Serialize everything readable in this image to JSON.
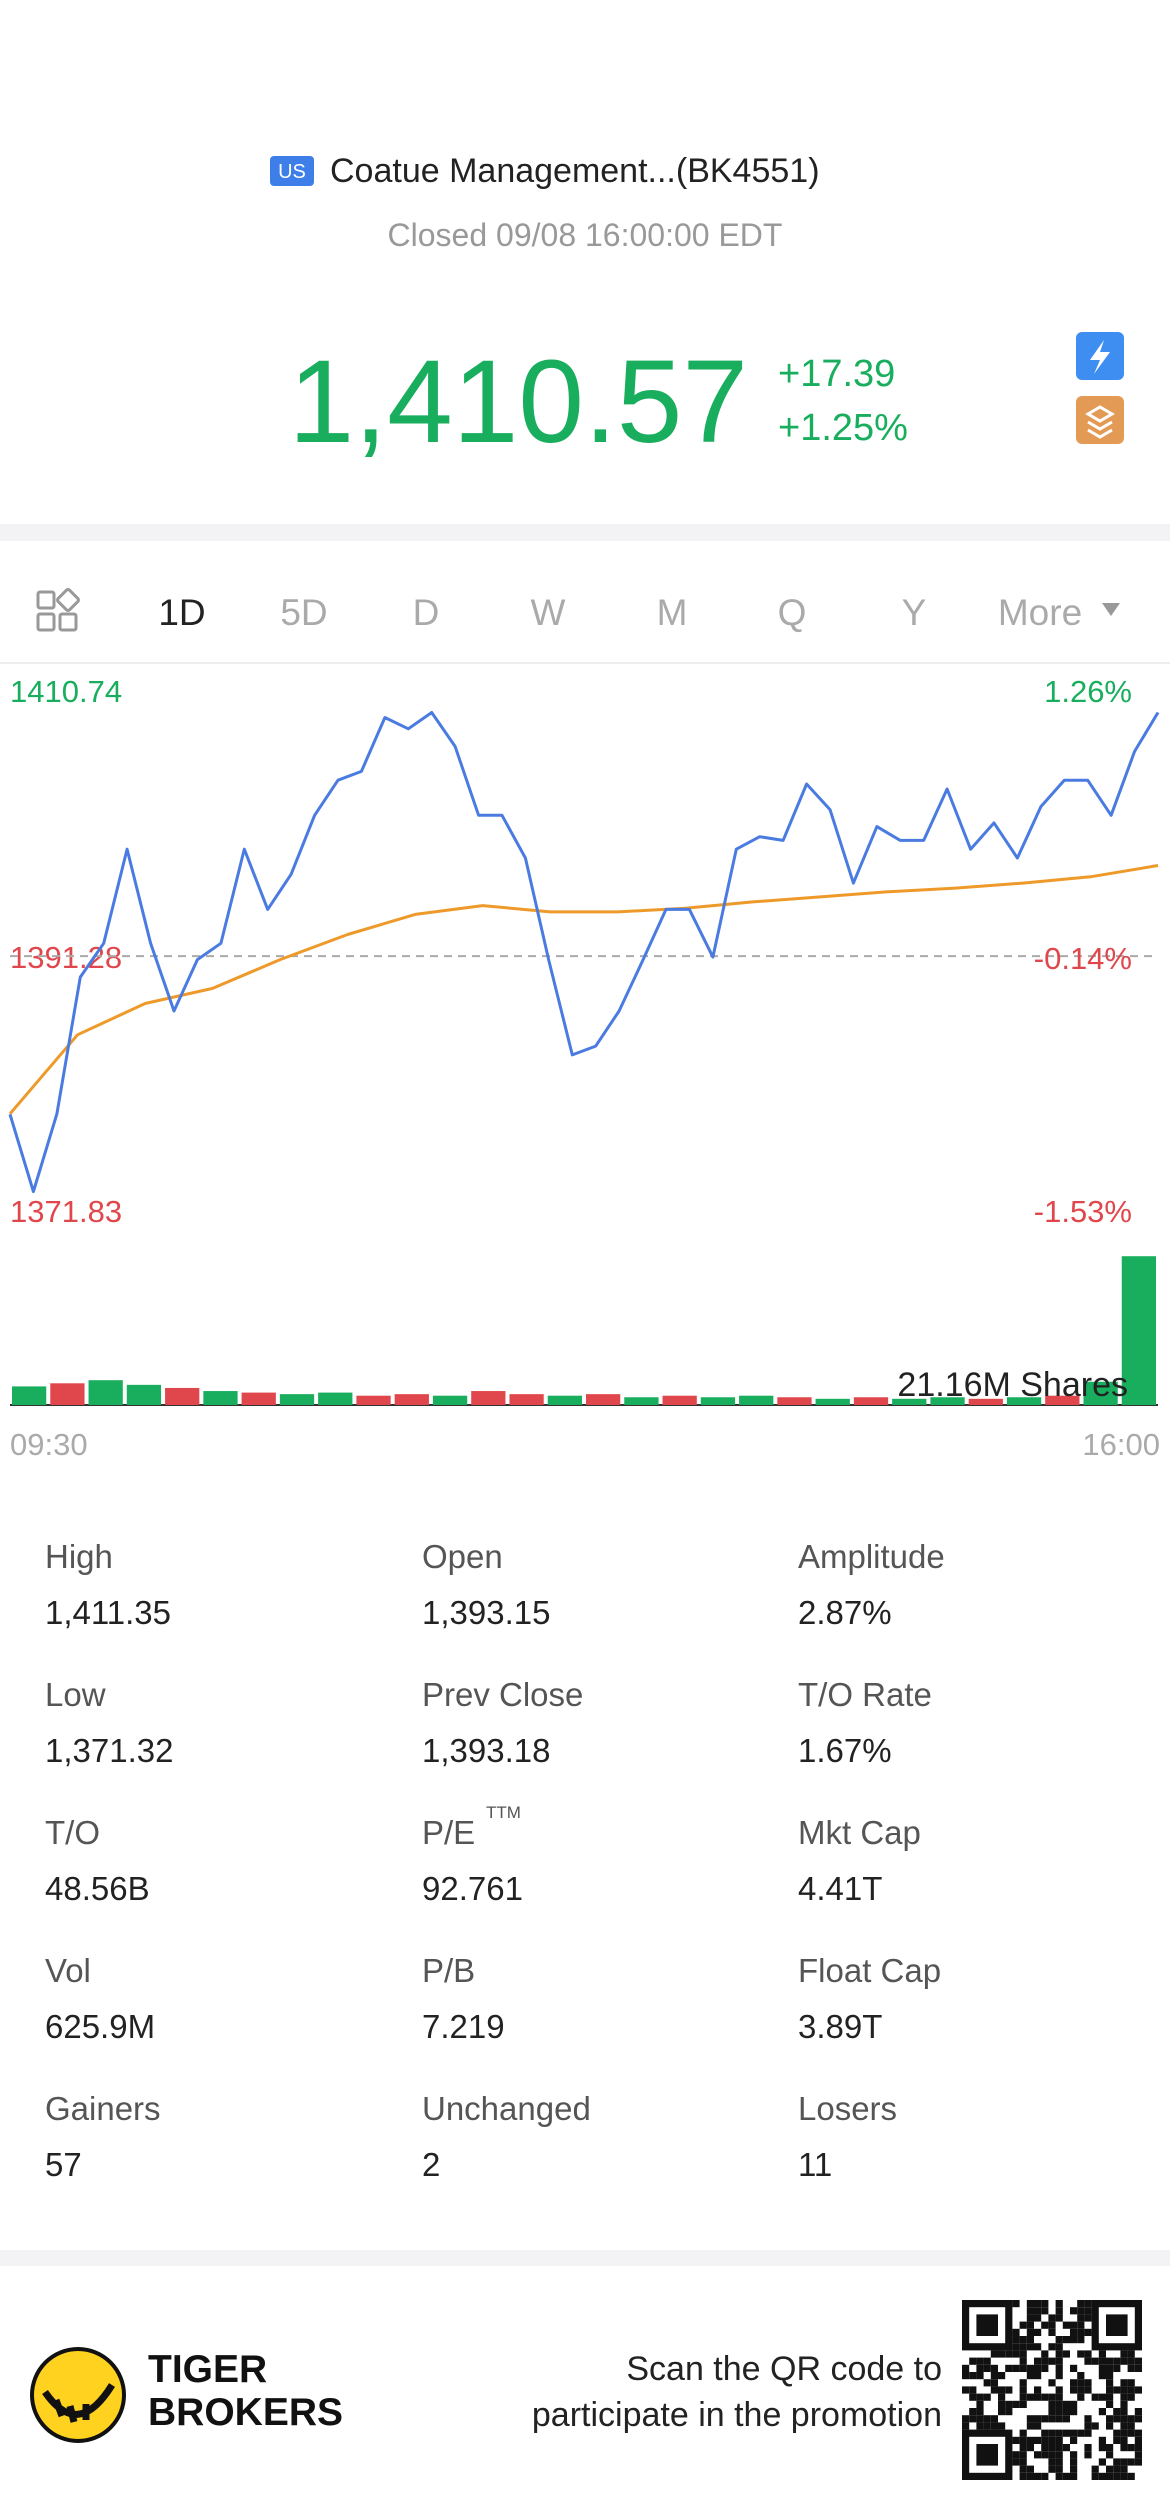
{
  "header": {
    "market": "US",
    "title": "Coatue Management...(BK4551)",
    "status": "Closed 09/08 16:00:00 EDT"
  },
  "quote": {
    "price": "1,410.57",
    "change": "+17.39",
    "change_pct": "+1.25%"
  },
  "tabs": [
    "1D",
    "5D",
    "D",
    "W",
    "M",
    "Q",
    "Y",
    "More"
  ],
  "chart_data": {
    "type": "line",
    "ylim": [
      1371.83,
      1410.74
    ],
    "yticks": [
      1410.74,
      1391.28,
      1371.83
    ],
    "y2lim": [
      -1.53,
      1.26
    ],
    "y2ticks": [
      {
        "value": 1.26,
        "label": "1.26%"
      },
      {
        "value": -0.14,
        "label": "-0.14%"
      },
      {
        "value": -1.53,
        "label": "-1.53%"
      }
    ],
    "x_labels": [
      "09:30",
      "16:00"
    ],
    "series": [
      {
        "name": "Price",
        "color": "#4a7be0",
        "values": [
          1378.66,
          1372.5,
          1378.7,
          1389.6,
          1392.3,
          1399.8,
          1392.3,
          1386.9,
          1391.0,
          1392.3,
          1399.8,
          1395.0,
          1397.8,
          1402.5,
          1405.3,
          1406.0,
          1410.3,
          1409.4,
          1410.7,
          1408.0,
          1402.5,
          1402.5,
          1399.1,
          1390.9,
          1383.4,
          1384.1,
          1386.9,
          1390.9,
          1395.0,
          1395.0,
          1391.2,
          1399.8,
          1400.8,
          1400.5,
          1405.0,
          1402.96,
          1397.1,
          1401.6,
          1400.5,
          1400.5,
          1404.6,
          1399.8,
          1401.9,
          1399.1,
          1403.2,
          1405.3,
          1405.3,
          1402.5,
          1407.6,
          1410.7
        ]
      },
      {
        "name": "Average",
        "color": "#ee9a2a",
        "values": [
          1378.7,
          1385.0,
          1387.5,
          1388.7,
          1391.0,
          1393.0,
          1394.6,
          1395.3,
          1394.8,
          1394.8,
          1395.1,
          1395.6,
          1396.0,
          1396.4,
          1396.7,
          1397.1,
          1397.6,
          1398.5
        ]
      }
    ],
    "volume": {
      "label": "21.16M Shares",
      "ylim": [
        0,
        10
      ],
      "values": [
        1.2,
        1.4,
        1.6,
        1.3,
        1.1,
        0.9,
        0.8,
        0.7,
        0.8,
        0.6,
        0.7,
        0.6,
        0.9,
        0.7,
        0.6,
        0.7,
        0.5,
        0.6,
        0.5,
        0.6,
        0.5,
        0.4,
        0.5,
        0.4,
        0.5,
        0.4,
        0.5,
        0.6,
        1.5,
        9.6
      ],
      "colors": [
        "#19ae5e",
        "#e0474c",
        "#19ae5e",
        "#19ae5e",
        "#e0474c",
        "#19ae5e",
        "#e0474c",
        "#19ae5e",
        "#19ae5e",
        "#e0474c",
        "#e0474c",
        "#19ae5e",
        "#e0474c",
        "#e0474c",
        "#19ae5e",
        "#e0474c",
        "#19ae5e",
        "#e0474c",
        "#19ae5e",
        "#19ae5e",
        "#e0474c",
        "#19ae5e",
        "#e0474c",
        "#19ae5e",
        "#19ae5e",
        "#e0474c",
        "#19ae5e",
        "#e0474c",
        "#19ae5e",
        "#19ae5e"
      ]
    }
  },
  "stats": [
    {
      "label": "High",
      "value": "1,411.35"
    },
    {
      "label": "Open",
      "value": "1,393.15"
    },
    {
      "label": "Amplitude",
      "value": "2.87%"
    },
    {
      "label": "Low",
      "value": "1,371.32"
    },
    {
      "label": "Prev Close",
      "value": "1,393.18"
    },
    {
      "label": "T/O Rate",
      "value": "1.67%"
    },
    {
      "label": "T/O",
      "value": "48.56B"
    },
    {
      "label": "P/E",
      "sup": "TTM",
      "value": "92.761"
    },
    {
      "label": "Mkt Cap",
      "value": "4.41T"
    },
    {
      "label": "Vol",
      "value": "625.9M"
    },
    {
      "label": "P/B",
      "value": "7.219"
    },
    {
      "label": "Float Cap",
      "value": "3.89T"
    },
    {
      "label": "Gainers",
      "value": "57"
    },
    {
      "label": "Unchanged",
      "value": "2"
    },
    {
      "label": "Losers",
      "value": "11"
    }
  ],
  "footer": {
    "brand": [
      "TIGER",
      "BROKERS"
    ],
    "promo": [
      "Scan the QR code to",
      "participate in the promotion"
    ]
  }
}
